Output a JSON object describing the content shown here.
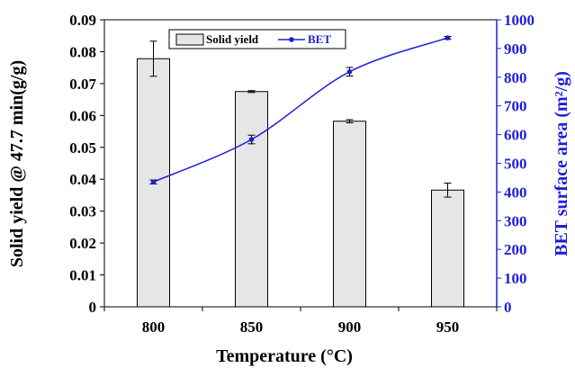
{
  "chart_data": {
    "type": "bar+line",
    "categories": [
      "800",
      "850",
      "900",
      "950"
    ],
    "xlabel": "Temperature (°C)",
    "ylabel_left": "Solid yield @ 47.7 min(g/g)",
    "ylabel_right": "BET surface area (m²/g)",
    "ylim_left": [
      0,
      0.09
    ],
    "yticks_left": [
      "0",
      "0.01",
      "0.02",
      "0.03",
      "0.04",
      "0.05",
      "0.06",
      "0.07",
      "0.08",
      "0.09"
    ],
    "ylim_right": [
      0,
      1000
    ],
    "yticks_right": [
      "0",
      "100",
      "200",
      "300",
      "400",
      "500",
      "600",
      "700",
      "800",
      "900",
      "1000"
    ],
    "grid": false,
    "legend_position": "top-center",
    "series": [
      {
        "name": "Solid yield",
        "type": "bar",
        "axis": "left",
        "values": [
          0.0778,
          0.0675,
          0.0582,
          0.0366
        ],
        "error": [
          0.0055,
          0.0003,
          0.0005,
          0.0022
        ]
      },
      {
        "name": "BET",
        "type": "line",
        "axis": "right",
        "values": [
          435,
          583,
          819,
          937
        ],
        "error": [
          7,
          15,
          15,
          5
        ]
      }
    ],
    "colors": {
      "bar_fill": "#e6e6e6",
      "bar_stroke": "#000000",
      "line": "#1f1fd6",
      "right_axis": "#1f1fd6"
    }
  }
}
